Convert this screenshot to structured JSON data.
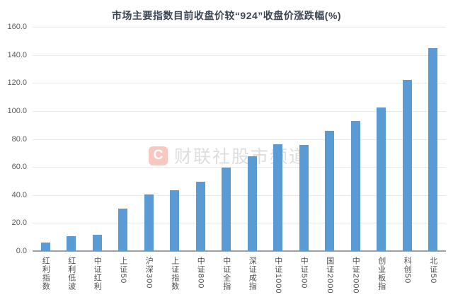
{
  "title": "市场主要指数目前收盘价较“924”收盘价涨跌幅(%)",
  "watermark": {
    "logo_letter": "C",
    "text": "财联社股市频道"
  },
  "colors": {
    "bar": "#5b9bd5",
    "gridline": "#e9e9e9",
    "axis_line": "#9ba1a6",
    "title_text": "#3d4653",
    "tick_text": "#595959",
    "watermark_logo": "#e8523c",
    "watermark_text": "#969696"
  },
  "chart_data": {
    "type": "bar",
    "title": "市场主要指数目前收盘价较“924”收盘价涨跌幅(%)",
    "categories": [
      "红利指数",
      "红利低波",
      "中证红利",
      "上证50",
      "沪深300",
      "上证指数",
      "中证800",
      "中证全指",
      "深证成指",
      "中证1000",
      "中证500",
      "国证2000",
      "中证2000",
      "创业板指",
      "科创50",
      "北证50"
    ],
    "values": [
      6.2,
      10.5,
      11.6,
      30.1,
      40.5,
      43.6,
      49.3,
      59.8,
      67.4,
      76.1,
      75.8,
      85.6,
      93.1,
      102.5,
      122.0,
      145.0
    ],
    "xlabel": "",
    "ylabel": "",
    "ylim": [
      0,
      160
    ],
    "y_ticks": [
      "160.0",
      "140.0",
      "120.0",
      "100.0",
      "80.0",
      "60.0",
      "40.0",
      "20.0",
      "0.0"
    ],
    "grid": true,
    "legend": false,
    "bar_color": "#5b9bd5"
  }
}
